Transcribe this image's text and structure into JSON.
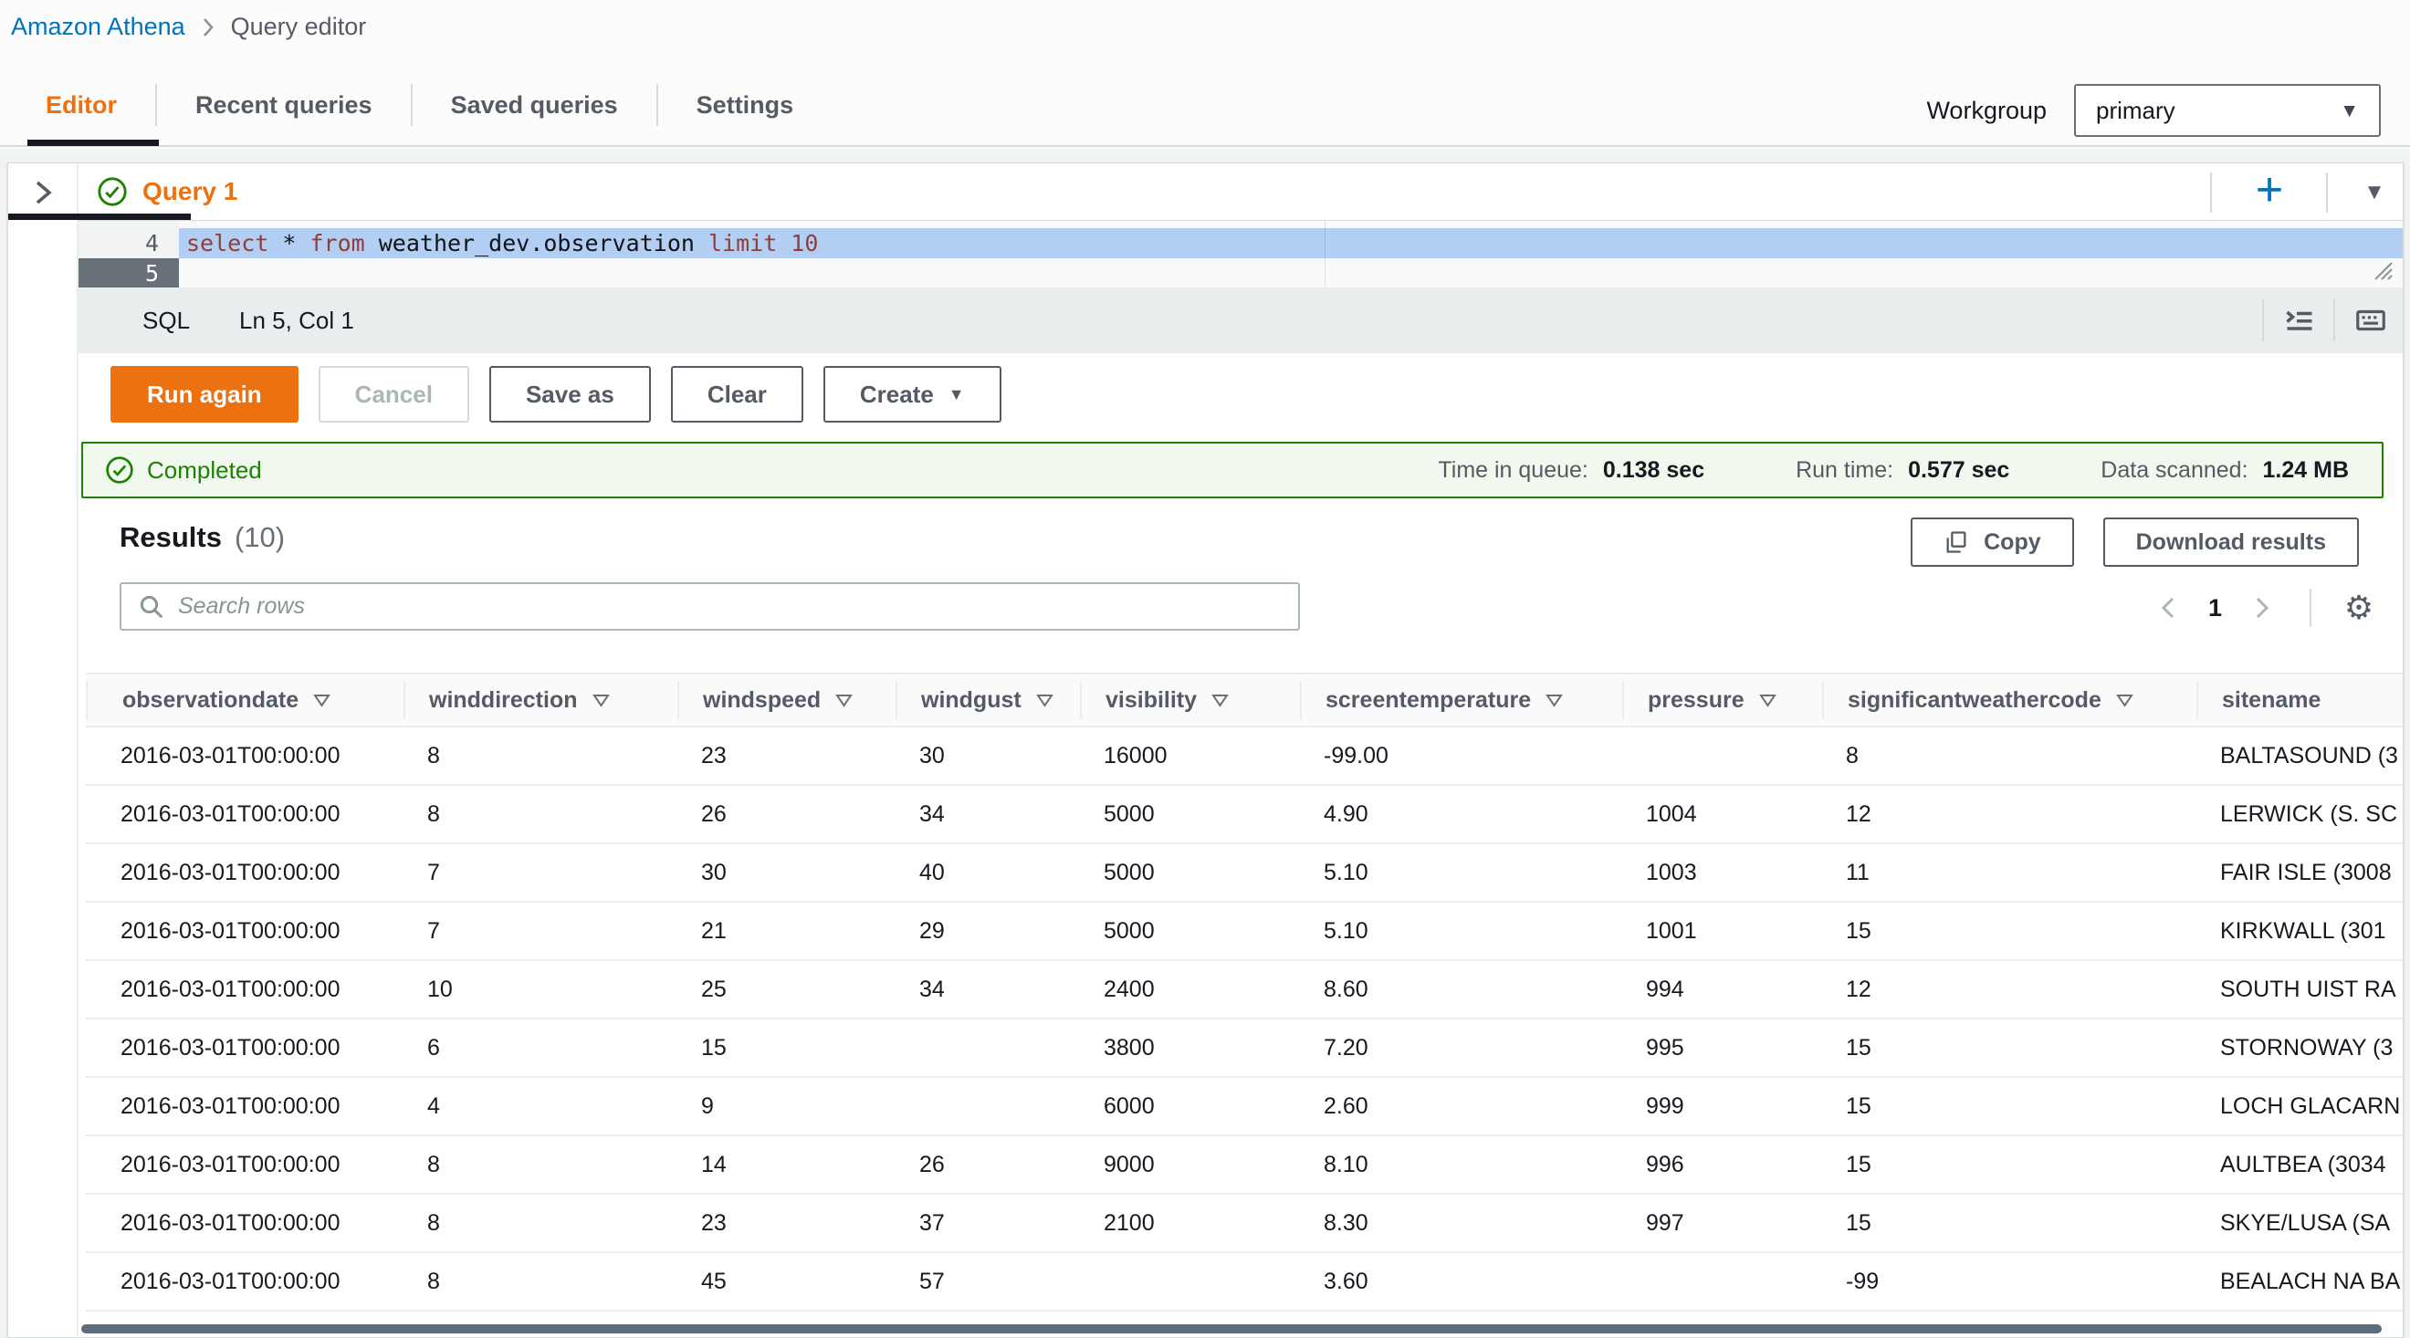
{
  "breadcrumb": {
    "root": "Amazon Athena",
    "current": "Query editor"
  },
  "nav_tabs": [
    {
      "label": "Editor",
      "active": true
    },
    {
      "label": "Recent queries",
      "active": false
    },
    {
      "label": "Saved queries",
      "active": false
    },
    {
      "label": "Settings",
      "active": false
    }
  ],
  "workgroup": {
    "label": "Workgroup",
    "value": "primary"
  },
  "query_tab": {
    "title": "Query 1"
  },
  "editor": {
    "lines": {
      "first": "4",
      "second": "5"
    },
    "tokens": [
      {
        "text": "select",
        "cls": "kw"
      },
      {
        "text": " * ",
        "cls": "plain"
      },
      {
        "text": "from",
        "cls": "kw"
      },
      {
        "text": " weather_dev.observation ",
        "cls": "plain"
      },
      {
        "text": "limit",
        "cls": "kw"
      },
      {
        "text": " 10",
        "cls": "num"
      }
    ],
    "language": "SQL",
    "cursor_position": "Ln 5, Col 1"
  },
  "actions": {
    "run": "Run again",
    "cancel": "Cancel",
    "save_as": "Save as",
    "clear": "Clear",
    "create": "Create"
  },
  "status_banner": {
    "state": "Completed",
    "stats": [
      {
        "label": "Time in queue:",
        "value": "0.138 sec"
      },
      {
        "label": "Run time:",
        "value": "0.577 sec"
      },
      {
        "label": "Data scanned:",
        "value": "1.24 MB"
      }
    ]
  },
  "results": {
    "title": "Results",
    "count": "(10)",
    "copy_label": "Copy",
    "download_label": "Download results",
    "search_placeholder": "Search rows",
    "page": "1"
  },
  "icons": {
    "gear": "⚙",
    "plus": "+",
    "caret_down": "▼"
  },
  "table": {
    "columns": [
      {
        "label": "observationdate",
        "filter": true
      },
      {
        "label": "winddirection",
        "filter": true
      },
      {
        "label": "windspeed",
        "filter": true
      },
      {
        "label": "windgust",
        "filter": true
      },
      {
        "label": "visibility",
        "filter": true
      },
      {
        "label": "screentemperature",
        "filter": true
      },
      {
        "label": "pressure",
        "filter": true
      },
      {
        "label": "significantweathercode",
        "filter": true
      },
      {
        "label": "sitename",
        "filter": false
      }
    ],
    "rows": [
      [
        "2016-03-01T00:00:00",
        "8",
        "23",
        "30",
        "16000",
        "-99.00",
        "",
        "8",
        "BALTASOUND (3"
      ],
      [
        "2016-03-01T00:00:00",
        "8",
        "26",
        "34",
        "5000",
        "4.90",
        "1004",
        "12",
        "LERWICK (S. SC"
      ],
      [
        "2016-03-01T00:00:00",
        "7",
        "30",
        "40",
        "5000",
        "5.10",
        "1003",
        "11",
        "FAIR ISLE (3008"
      ],
      [
        "2016-03-01T00:00:00",
        "7",
        "21",
        "29",
        "5000",
        "5.10",
        "1001",
        "15",
        "KIRKWALL (301"
      ],
      [
        "2016-03-01T00:00:00",
        "10",
        "25",
        "34",
        "2400",
        "8.60",
        "994",
        "12",
        "SOUTH UIST RA"
      ],
      [
        "2016-03-01T00:00:00",
        "6",
        "15",
        "",
        "3800",
        "7.20",
        "995",
        "15",
        "STORNOWAY (3"
      ],
      [
        "2016-03-01T00:00:00",
        "4",
        "9",
        "",
        "6000",
        "2.60",
        "999",
        "15",
        "LOCH GLACARN"
      ],
      [
        "2016-03-01T00:00:00",
        "8",
        "14",
        "26",
        "9000",
        "8.10",
        "996",
        "15",
        "AULTBEA (3034"
      ],
      [
        "2016-03-01T00:00:00",
        "8",
        "23",
        "37",
        "2100",
        "8.30",
        "997",
        "15",
        "SKYE/LUSA (SA"
      ],
      [
        "2016-03-01T00:00:00",
        "8",
        "45",
        "57",
        "",
        "3.60",
        "",
        "-99",
        "BEALACH NA BA"
      ]
    ]
  },
  "colors": {
    "accent_orange": "#ec7211",
    "link_blue": "#0073bb",
    "success_green": "#1d8102",
    "selection_blue": "#b3cef3"
  }
}
